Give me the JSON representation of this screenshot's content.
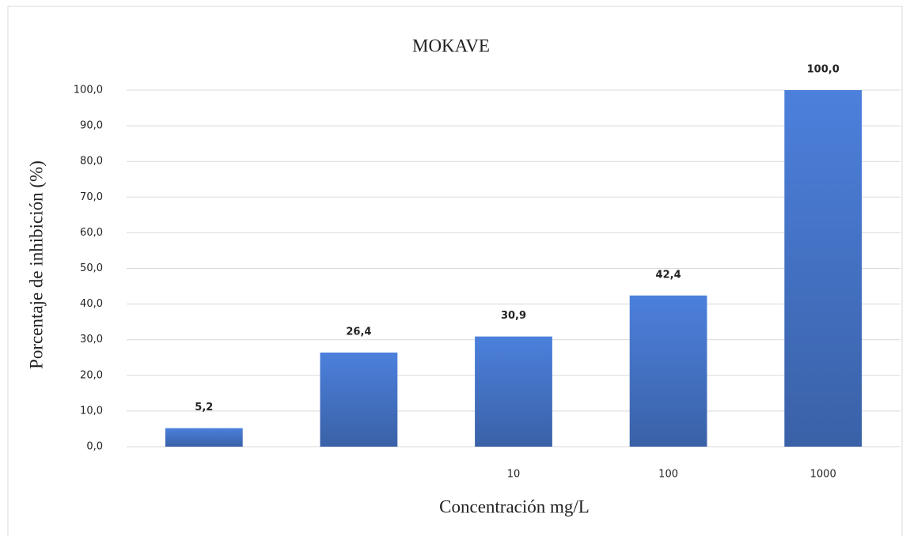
{
  "chart_data": {
    "type": "bar",
    "title": "MOKAVE",
    "x_label": "Concentración mg/L",
    "y_label": "Porcentaje de inhibición (%)",
    "categories": [
      null,
      null,
      "10",
      "100",
      "1000"
    ],
    "values": [
      5.2,
      26.4,
      30.9,
      42.4,
      100.0
    ],
    "value_labels": [
      "5,2",
      "26,4",
      "30,9",
      "42,4",
      "100,0"
    ],
    "color": "#4472c4",
    "ylim": [
      0,
      100
    ],
    "yticks": [
      {
        "value": 0,
        "label": "0,0"
      },
      {
        "value": 10,
        "label": "10,0"
      },
      {
        "value": 20,
        "label": "20,0"
      },
      {
        "value": 30,
        "label": "30,0"
      },
      {
        "value": 40,
        "label": "40,0"
      },
      {
        "value": 50,
        "label": "50,0"
      },
      {
        "value": 60,
        "label": "60,0"
      },
      {
        "value": 70,
        "label": "70,0"
      },
      {
        "value": 80,
        "label": "80,0"
      },
      {
        "value": 90,
        "label": "90,0"
      },
      {
        "value": 100,
        "label": "100,0"
      }
    ],
    "grid": true
  }
}
